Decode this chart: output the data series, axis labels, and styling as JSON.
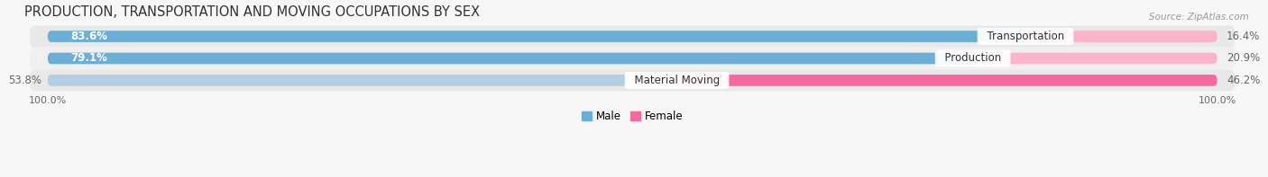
{
  "title": "PRODUCTION, TRANSPORTATION AND MOVING OCCUPATIONS BY SEX",
  "source_text": "Source: ZipAtlas.com",
  "categories": [
    "Transportation",
    "Production",
    "Material Moving"
  ],
  "male_values": [
    83.6,
    79.1,
    53.8
  ],
  "female_values": [
    16.4,
    20.9,
    46.2
  ],
  "male_color": "#6baed6",
  "male_color_light": "#b3cde3",
  "female_color": "#f768a1",
  "female_color_light": "#fbb4ca",
  "row_bg_dark": "#e8e8e8",
  "row_bg_light": "#f0f0f0",
  "bar_height": 0.52,
  "title_fontsize": 10.5,
  "label_fontsize": 8.5,
  "tick_fontsize": 8,
  "background_color": "#f7f7f7"
}
